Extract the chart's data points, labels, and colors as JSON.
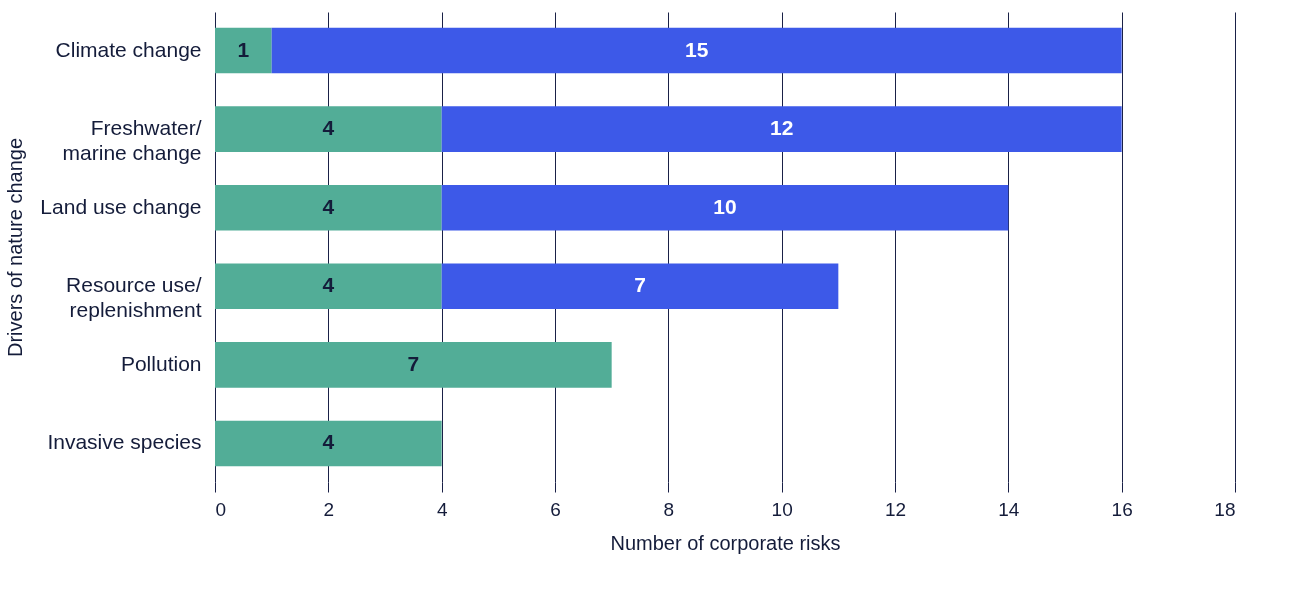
{
  "chart_data": {
    "type": "bar",
    "orientation": "horizontal",
    "stacked": true,
    "data_labels": true,
    "categories": [
      "Climate change",
      "Freshwater/\nmarine change",
      "Land use change",
      "Resource use/\nreplenishment",
      "Pollution",
      "Invasive species"
    ],
    "series": [
      {
        "color": "#52ad97",
        "values": [
          1,
          4,
          4,
          4,
          7,
          4
        ]
      },
      {
        "color": "#3d59e8",
        "values": [
          15,
          12,
          10,
          7,
          null,
          null
        ]
      }
    ],
    "xlabel": "Number of corporate risks",
    "ylabel": "Drivers of nature change",
    "xlim": [
      0,
      18
    ],
    "xticks": [
      0,
      2,
      4,
      6,
      8,
      10,
      12,
      14,
      16,
      18
    ],
    "grid": "x",
    "legend": false
  }
}
